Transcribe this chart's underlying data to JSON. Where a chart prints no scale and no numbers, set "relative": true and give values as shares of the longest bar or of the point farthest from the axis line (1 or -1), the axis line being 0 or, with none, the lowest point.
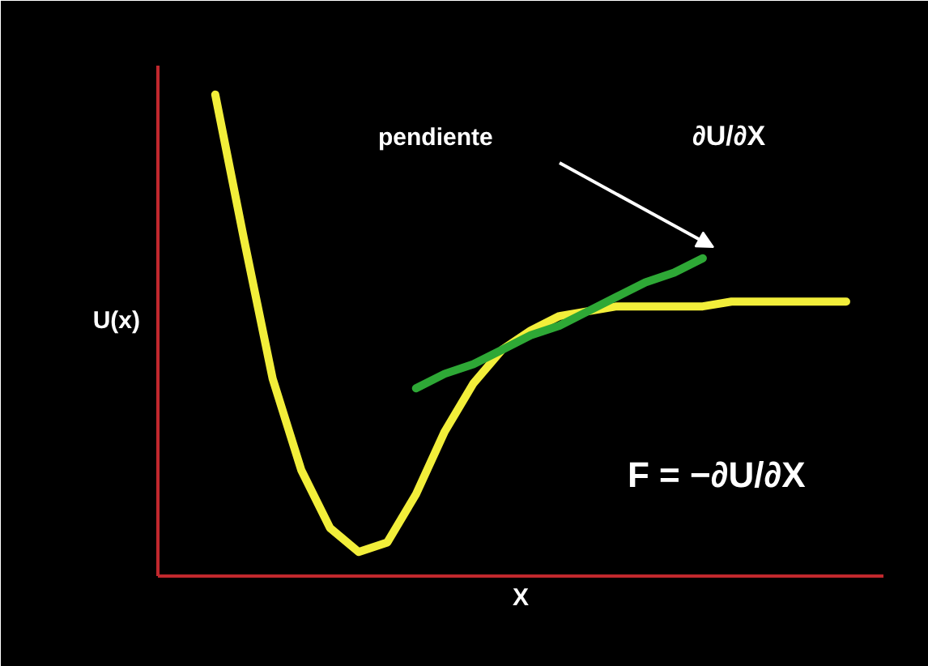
{
  "chart_data": {
    "type": "line",
    "relative": true,
    "xlabel": "X",
    "ylabel": "U(x)",
    "categories": [
      null,
      null,
      null,
      null,
      null,
      null,
      null,
      null,
      null,
      null,
      null,
      null,
      null,
      null,
      null,
      null,
      null,
      null,
      null,
      null,
      null,
      null,
      null
    ],
    "series": [
      {
        "color": "#f2ee3a",
        "values": [
          1,
          0.7,
          0.41,
          0.22,
          0.1,
          0.05,
          0.07,
          0.17,
          0.3,
          0.4,
          0.47,
          0.51,
          0.54,
          0.55,
          0.56,
          0.56,
          0.56,
          0.56,
          0.57,
          0.57,
          0.57,
          0.57,
          0.57
        ]
      },
      {
        "color": "#2ea836",
        "values": [
          null,
          null,
          null,
          null,
          null,
          null,
          null,
          0.39,
          0.42,
          0.44,
          0.47,
          0.5,
          0.52,
          0.55,
          0.58,
          0.61,
          0.63,
          0.66,
          null,
          null,
          null,
          null,
          null
        ]
      }
    ],
    "annotations": [
      "pendiente",
      "∂U/∂X",
      "F = −∂U/∂X"
    ],
    "marker": "none"
  }
}
